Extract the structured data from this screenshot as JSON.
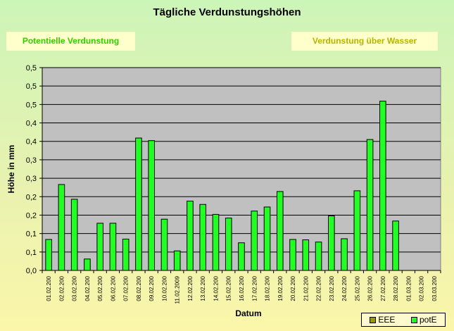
{
  "chart_data": {
    "type": "bar",
    "title": "Tägliche Verdunstungshöhen",
    "xlabel": "Datum",
    "ylabel": "Höhe in mm",
    "ylim": [
      0,
      0.55
    ],
    "y_ticks": [
      "0,0",
      "0,1",
      "0,1",
      "0,2",
      "0,2",
      "0,3",
      "0,3",
      "0,4",
      "0,4",
      "0,5",
      "0,5",
      "0,5"
    ],
    "grid": true,
    "legend_position": "bottom-right",
    "categories": [
      "01.02.200",
      "02.02.200",
      "03.02.200",
      "04.02.200",
      "05.02.200",
      "06.02.200",
      "07.02.200",
      "08.02.200",
      "09.02.200",
      "10.02.200",
      "11.02.2009",
      "12.02.200",
      "13.02.200",
      "14.02.200",
      "15.02.200",
      "16.02.200",
      "17.02.200",
      "18.02.200",
      "19.02.200",
      "20.02.200",
      "21.02.200",
      "22.02.200",
      "23.02.200",
      "24.02.200",
      "25.02.200",
      "26.02.200",
      "27.02.200",
      "28.02.200",
      "01.03.200",
      "02.03.200",
      "03.03.200"
    ],
    "series": [
      {
        "name": "EEE",
        "color": "#999900",
        "values": [
          null,
          null,
          null,
          null,
          null,
          null,
          null,
          null,
          null,
          null,
          null,
          null,
          null,
          null,
          null,
          null,
          null,
          null,
          null,
          null,
          null,
          null,
          null,
          null,
          null,
          null,
          null,
          null,
          null,
          null,
          null
        ]
      },
      {
        "name": "potE",
        "color": "#22ff22",
        "values": [
          0.084,
          0.233,
          0.193,
          0.031,
          0.128,
          0.128,
          0.085,
          0.359,
          0.352,
          0.139,
          0.053,
          0.188,
          0.179,
          0.152,
          0.142,
          0.075,
          0.161,
          0.172,
          0.214,
          0.084,
          0.083,
          0.077,
          0.148,
          0.086,
          0.216,
          0.355,
          0.459,
          0.134,
          null,
          null,
          null
        ]
      }
    ]
  },
  "header": {
    "potential_tab": "Potentielle Verdunstung",
    "water_tab": "Verdunstung über Wasser"
  },
  "colors": {
    "plot_background": "#c0c0c0",
    "bar_fill": "#22ff22",
    "potential_tab_text": "#33cc00",
    "water_tab_text": "#b5b500"
  }
}
